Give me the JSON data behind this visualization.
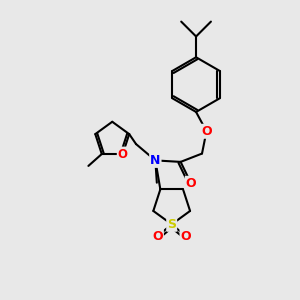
{
  "bg_color": "#e8e8e8",
  "bond_color": "#000000",
  "bond_width": 1.5,
  "atom_colors": {
    "O": "#ff0000",
    "N": "#0000ff",
    "S": "#cccc00",
    "C": "#000000"
  },
  "font_size": 8.5,
  "fig_size": [
    3.0,
    3.0
  ],
  "dpi": 100
}
